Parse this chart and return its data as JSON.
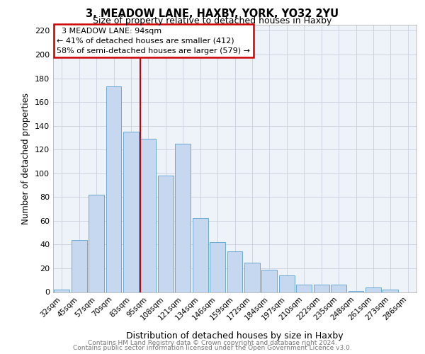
{
  "title": "3, MEADOW LANE, HAXBY, YORK, YO32 2YU",
  "subtitle": "Size of property relative to detached houses in Haxby",
  "xlabel": "Distribution of detached houses by size in Haxby",
  "ylabel": "Number of detached properties",
  "categories": [
    "32sqm",
    "45sqm",
    "57sqm",
    "70sqm",
    "83sqm",
    "95sqm",
    "108sqm",
    "121sqm",
    "134sqm",
    "146sqm",
    "159sqm",
    "172sqm",
    "184sqm",
    "197sqm",
    "210sqm",
    "222sqm",
    "235sqm",
    "248sqm",
    "261sqm",
    "273sqm",
    "286sqm"
  ],
  "values": [
    2,
    44,
    82,
    173,
    135,
    129,
    98,
    125,
    62,
    42,
    34,
    25,
    19,
    14,
    6,
    6,
    6,
    1,
    4,
    2,
    0
  ],
  "bar_color": "#c5d8f0",
  "bar_edge_color": "#6aaad4",
  "vline_idx": 5,
  "annotation_title": "3 MEADOW LANE: 94sqm",
  "annotation_line1": "← 41% of detached houses are smaller (412)",
  "annotation_line2": "58% of semi-detached houses are larger (579) →",
  "annotation_box_color": "#ffffff",
  "annotation_box_edge": "#cc0000",
  "vline_color": "#cc0000",
  "ylim": [
    0,
    225
  ],
  "yticks": [
    0,
    20,
    40,
    60,
    80,
    100,
    120,
    140,
    160,
    180,
    200,
    220
  ],
  "grid_color": "#c8d0dc",
  "footer1": "Contains HM Land Registry data © Crown copyright and database right 2024.",
  "footer2": "Contains public sector information licensed under the Open Government Licence v3.0.",
  "bg_color": "#eef2f9"
}
